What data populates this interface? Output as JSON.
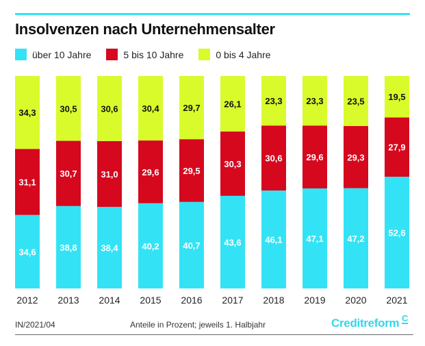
{
  "chart_data": {
    "type": "bar",
    "stacked": true,
    "title": "Insolvenzen nach Unternehmensalter",
    "categories": [
      "2012",
      "2013",
      "2014",
      "2015",
      "2016",
      "2017",
      "2018",
      "2019",
      "2020",
      "2021"
    ],
    "series": [
      {
        "name": "über 10 Jahre",
        "color": "#33e3f5",
        "label_color": "#ffffff",
        "values": [
          34.6,
          38.8,
          38.4,
          40.2,
          40.7,
          43.6,
          46.1,
          47.1,
          47.2,
          52.6
        ],
        "labels": [
          "34,6",
          "38,8",
          "38,4",
          "40,2",
          "40,7",
          "43,6",
          "46,1",
          "47,1",
          "47,2",
          "52,6"
        ]
      },
      {
        "name": "5 bis 10 Jahre",
        "color": "#d5081e",
        "label_color": "#ffffff",
        "values": [
          31.1,
          30.7,
          31.0,
          29.6,
          29.5,
          30.3,
          30.6,
          29.6,
          29.3,
          27.9
        ],
        "labels": [
          "31,1",
          "30,7",
          "31,0",
          "29,6",
          "29,5",
          "30,3",
          "30,6",
          "29,6",
          "29,3",
          "27,9"
        ]
      },
      {
        "name": "0 bis 4 Jahre",
        "color": "#d9fb2b",
        "label_color": "#111111",
        "values": [
          34.3,
          30.5,
          30.6,
          30.4,
          29.7,
          26.1,
          23.3,
          23.3,
          23.5,
          19.5
        ],
        "labels": [
          "34,3",
          "30,5",
          "30,6",
          "30,4",
          "29,7",
          "26,1",
          "23,3",
          "23,3",
          "23,5",
          "19,5"
        ]
      }
    ],
    "ylim": [
      0,
      100
    ],
    "xlabel": "",
    "ylabel": "",
    "grid": false,
    "legend_position": "top-left"
  },
  "footer": {
    "code": "IN/2021/04",
    "note": "Anteile in Prozent; jeweils 1. Halbjahr",
    "brand": "Creditreform",
    "brand_mark": "C"
  }
}
